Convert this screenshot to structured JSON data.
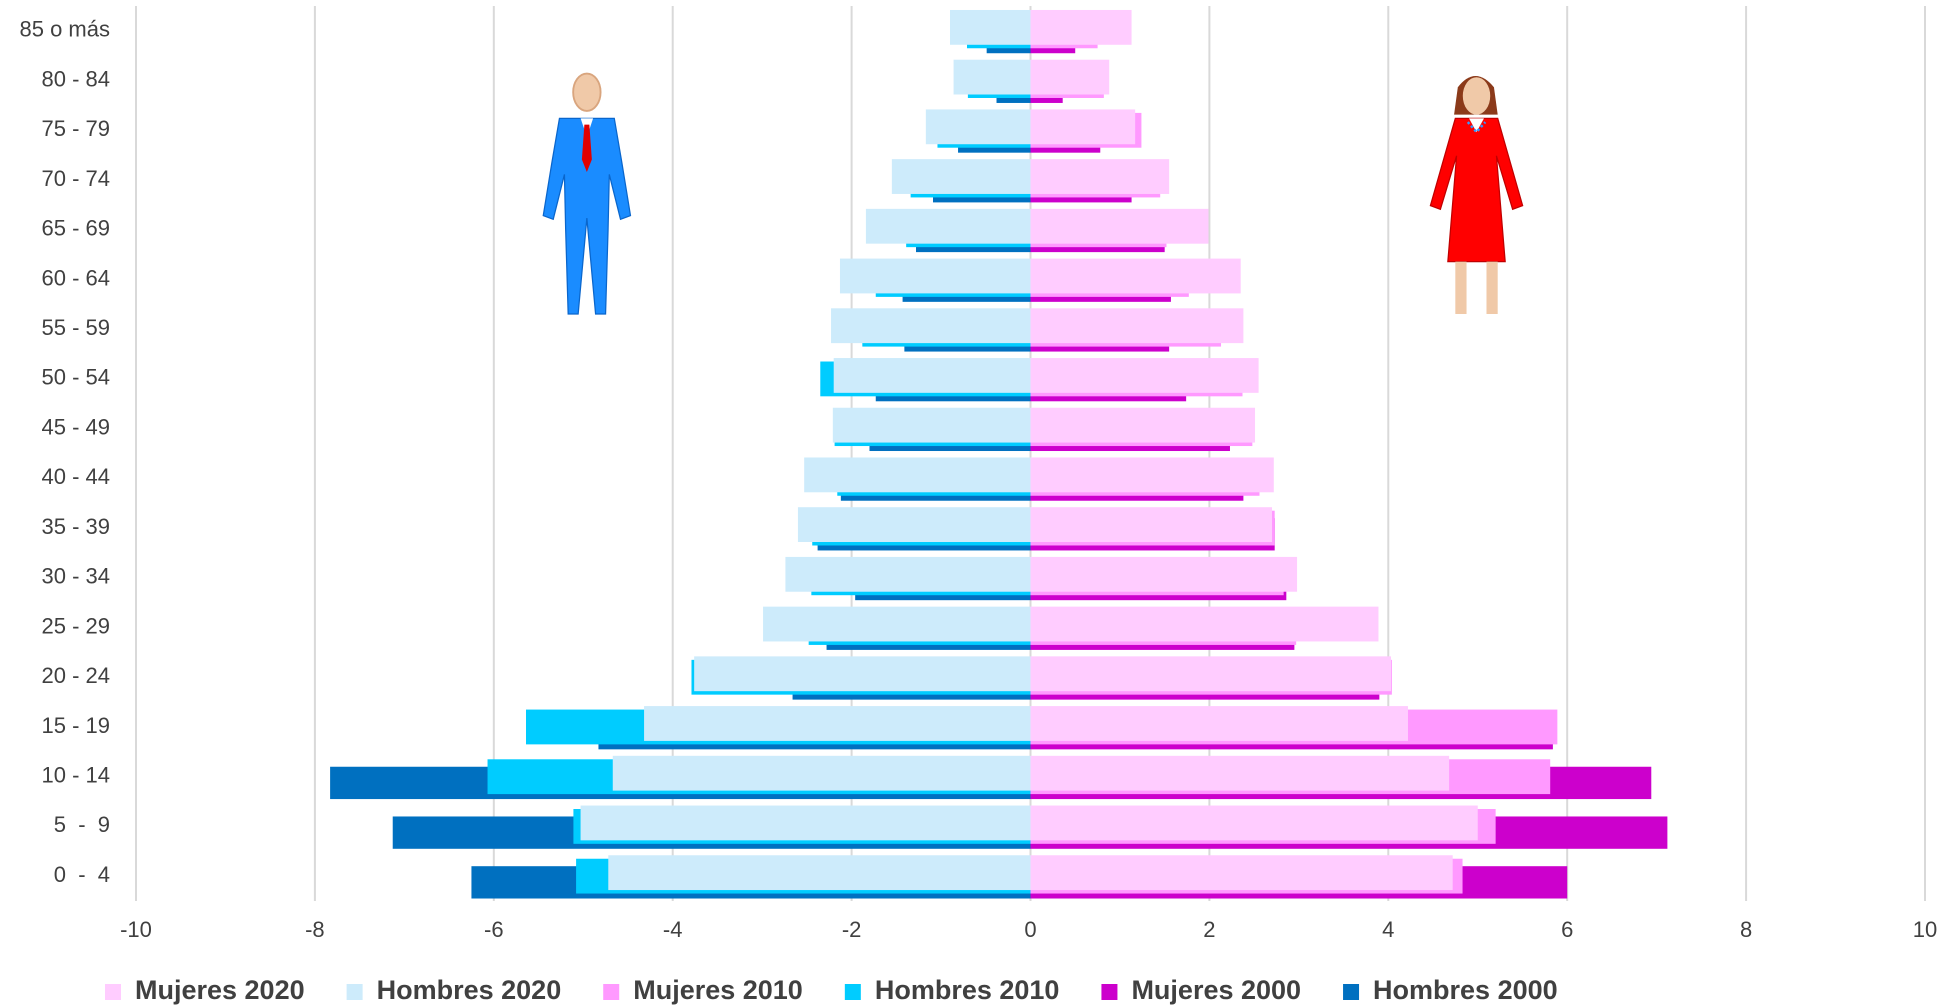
{
  "chart_data": {
    "type": "bar",
    "orientation": "horizontal",
    "categories": [
      "0  -  4",
      "5  -  9",
      "10 - 14",
      "15 - 19",
      "20 - 24",
      "25 - 29",
      "30 - 34",
      "35 - 39",
      "40 - 44",
      "45 - 49",
      "50 - 54",
      "55 - 59",
      "60 - 64",
      "65 - 69",
      "70 - 74",
      "75 - 79",
      "80 - 84",
      "85 o más"
    ],
    "series": [
      {
        "name": "Mujeres 2020",
        "color": "#ffccff",
        "values": [
          4.72,
          5.0,
          4.68,
          4.22,
          4.03,
          3.89,
          2.98,
          2.7,
          2.72,
          2.51,
          2.55,
          2.38,
          2.35,
          1.99,
          1.55,
          1.17,
          0.88,
          1.13
        ]
      },
      {
        "name": "Hombres 2020",
        "color": "#cdebfb",
        "values": [
          -4.72,
          -5.03,
          -4.67,
          -4.32,
          -3.76,
          -2.99,
          -2.74,
          -2.6,
          -2.53,
          -2.21,
          -2.2,
          -2.23,
          -2.13,
          -1.84,
          -1.55,
          -1.17,
          -0.86,
          -0.9
        ]
      },
      {
        "name": "Mujeres 2010",
        "color": "#ff99ff",
        "values": [
          4.83,
          5.2,
          5.81,
          5.89,
          4.04,
          2.97,
          2.83,
          2.73,
          2.56,
          2.48,
          2.37,
          2.13,
          1.77,
          1.52,
          1.45,
          1.24,
          0.82,
          0.75
        ]
      },
      {
        "name": "Hombres 2010",
        "color": "#00ccff",
        "values": [
          -5.08,
          -5.11,
          -6.07,
          -5.64,
          -3.79,
          -2.48,
          -2.45,
          -2.44,
          -2.16,
          -2.19,
          -2.35,
          -1.88,
          -1.73,
          -1.39,
          -1.34,
          -1.04,
          -0.7,
          -0.71
        ]
      },
      {
        "name": "Mujeres 2000",
        "color": "#cc00cc",
        "values": [
          6.0,
          7.12,
          6.94,
          5.84,
          3.9,
          2.95,
          2.86,
          2.73,
          2.38,
          2.23,
          1.74,
          1.55,
          1.57,
          1.5,
          1.13,
          0.78,
          0.36,
          0.5
        ]
      },
      {
        "name": "Hombres 2000",
        "color": "#0070c0",
        "values": [
          -6.25,
          -7.13,
          -7.83,
          -4.83,
          -2.66,
          -2.28,
          -1.96,
          -2.38,
          -2.12,
          -1.8,
          -1.73,
          -1.41,
          -1.43,
          -1.28,
          -1.09,
          -0.81,
          -0.38,
          -0.49
        ]
      }
    ],
    "xlim": [
      -10,
      10
    ],
    "xticks": [
      -10,
      -8,
      -6,
      -4,
      -2,
      0,
      2,
      4,
      6,
      8,
      10
    ],
    "grid": true,
    "legend": "bottom"
  }
}
